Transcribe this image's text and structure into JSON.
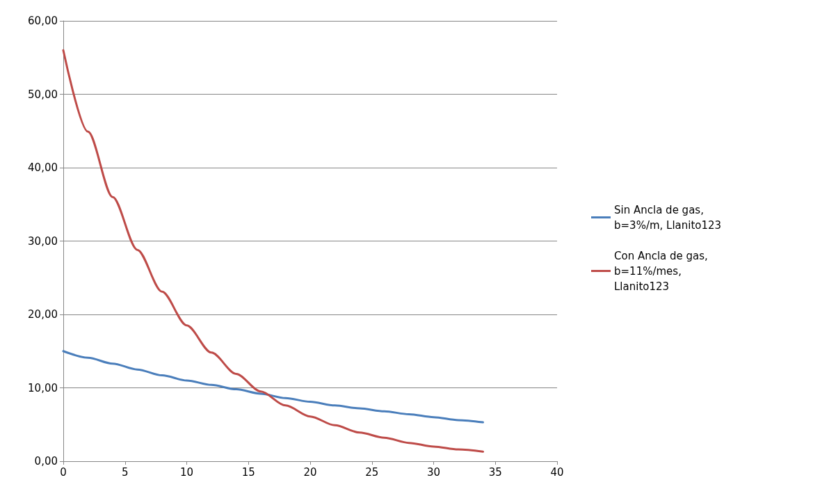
{
  "chart_data": {
    "type": "line",
    "x": [
      0,
      2,
      4,
      6,
      8,
      10,
      12,
      14,
      16,
      18,
      20,
      22,
      24,
      26,
      28,
      30,
      32,
      34
    ],
    "series": [
      {
        "name": "Sin Ancla de gas, b=3%/m, Llanito123",
        "color": "#4a7ebb",
        "values": [
          15.0,
          14.1,
          13.3,
          12.5,
          11.7,
          11.0,
          10.4,
          9.8,
          9.2,
          8.6,
          8.1,
          7.6,
          7.2,
          6.8,
          6.4,
          6.0,
          5.6,
          5.3
        ]
      },
      {
        "name": "Con Ancla de gas, b=11%/mes, Llanito123",
        "color": "#be4b48",
        "values": [
          56.0,
          44.9,
          36.0,
          28.8,
          23.1,
          18.5,
          14.8,
          11.9,
          9.5,
          7.6,
          6.1,
          4.9,
          3.9,
          3.2,
          2.5,
          2.0,
          1.6,
          1.3
        ]
      }
    ],
    "xlim": [
      0,
      40
    ],
    "xticks": [
      0,
      5,
      10,
      15,
      20,
      25,
      30,
      35,
      40
    ],
    "ylim": [
      0,
      60
    ],
    "yticks": [
      {
        "value": 0,
        "label": "0,00"
      },
      {
        "value": 10,
        "label": "10,00"
      },
      {
        "value": 20,
        "label": "20,00"
      },
      {
        "value": 30,
        "label": "30,00"
      },
      {
        "value": 40,
        "label": "40,00"
      },
      {
        "value": 50,
        "label": "50,00"
      },
      {
        "value": 60,
        "label": "60,00"
      }
    ],
    "grid": "y",
    "legend": "right",
    "marker": "none",
    "line_style": "solid"
  }
}
